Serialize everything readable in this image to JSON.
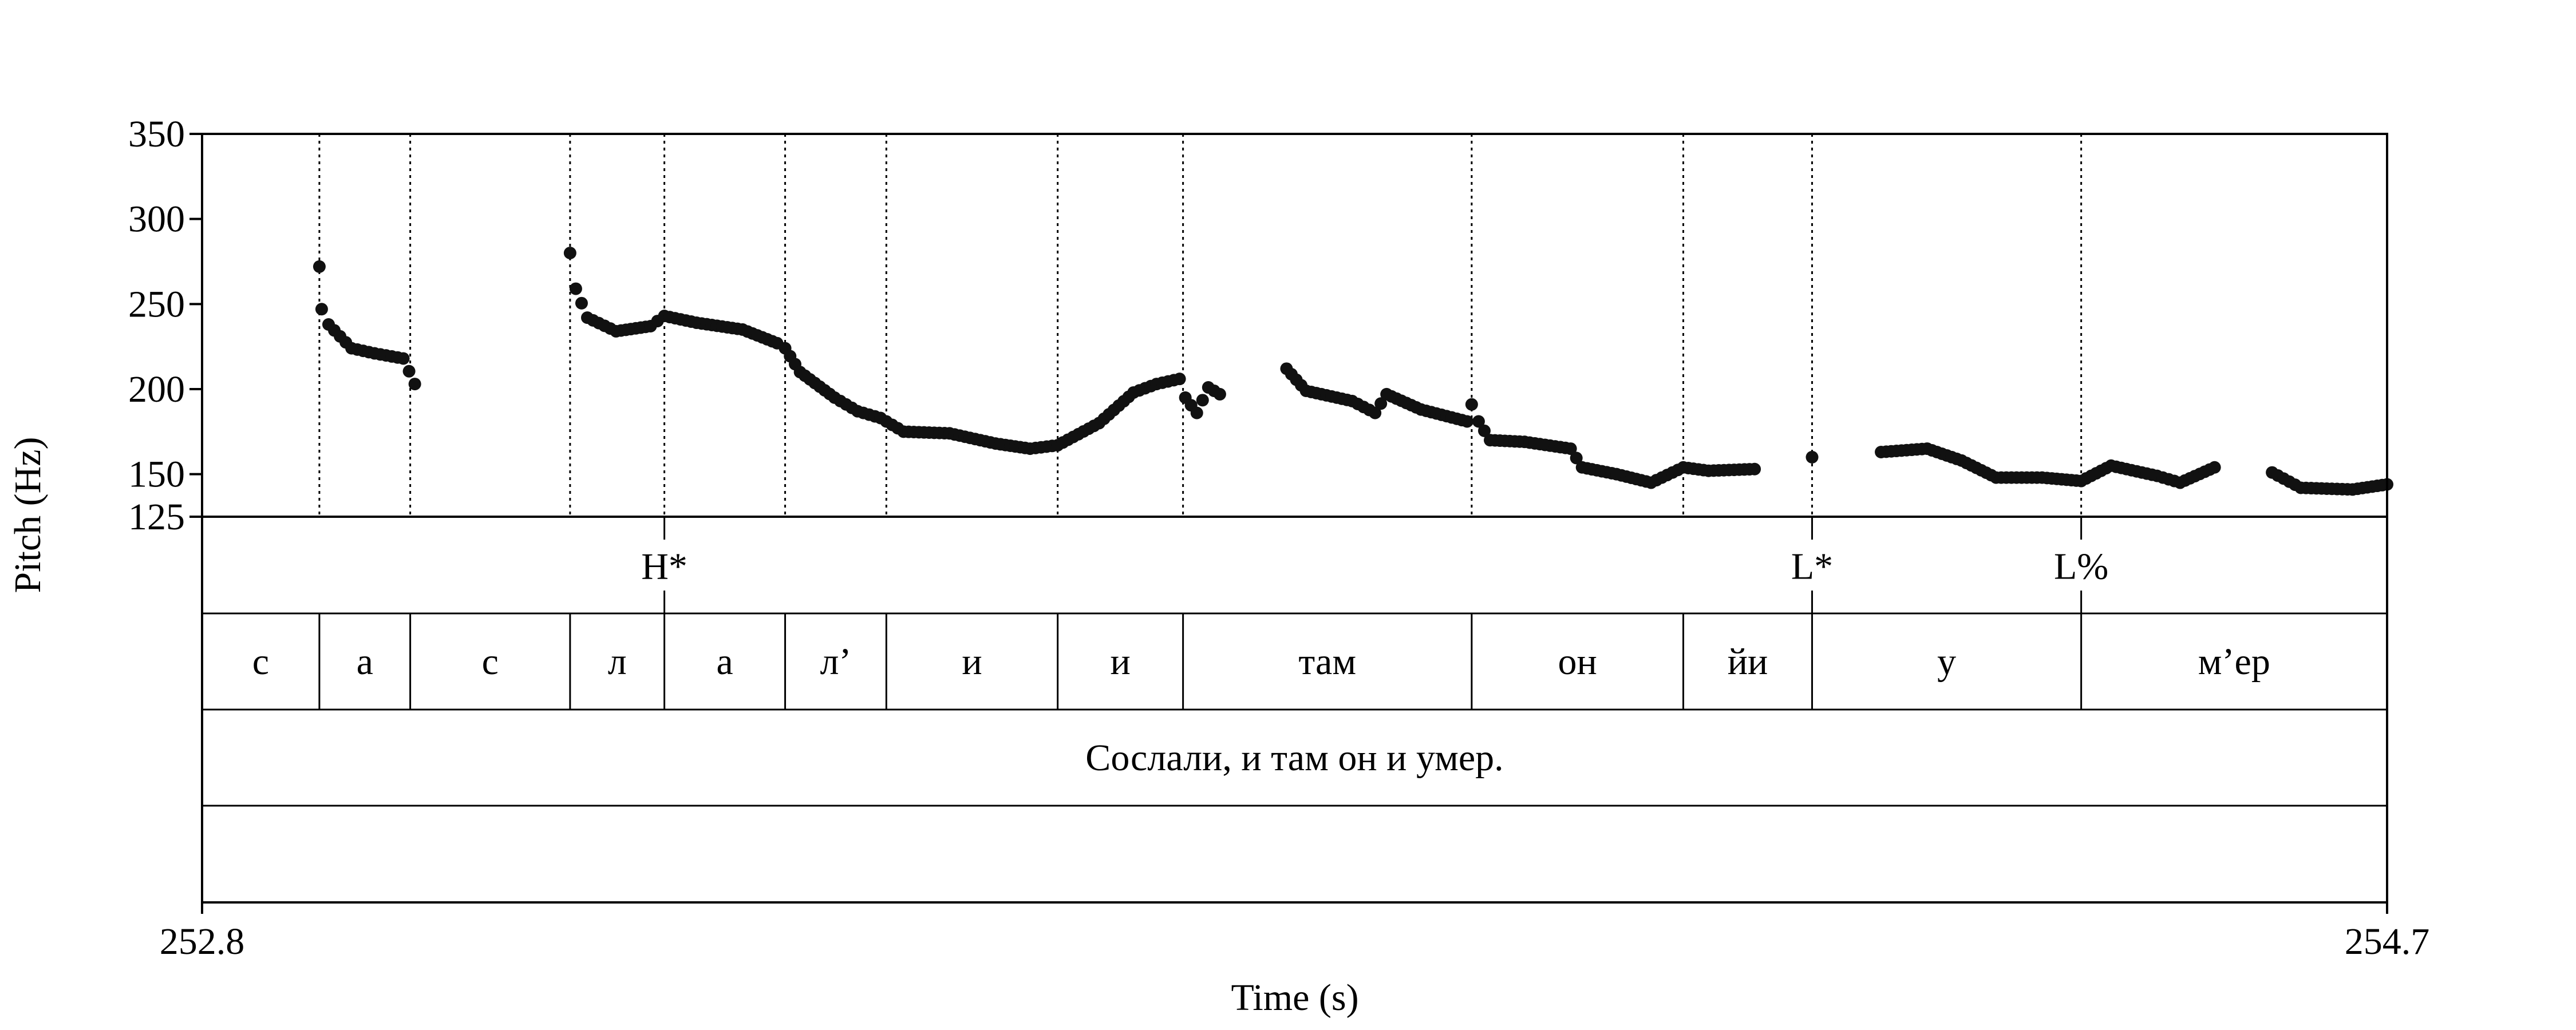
{
  "chart_data": {
    "type": "scatter",
    "xlabel": "Time (s)",
    "ylabel": "Pitch (Hz)",
    "xlim": [
      252.8,
      254.7
    ],
    "ylim": [
      125,
      350
    ],
    "x_ticks": [
      "252.8",
      "254.7"
    ],
    "y_ticks": [
      125,
      150,
      200,
      250,
      300,
      350
    ],
    "grid": false,
    "tone_tier": [
      {
        "label": "H*",
        "t": 253.202
      },
      {
        "label": "L*",
        "t": 254.2
      },
      {
        "label": "L%",
        "t": 254.434
      }
    ],
    "syllable_boundaries": [
      252.902,
      252.981,
      253.12,
      253.202,
      253.307,
      253.395,
      253.544,
      253.653,
      253.904,
      254.088,
      254.2,
      254.434
    ],
    "syllables": [
      {
        "label": "с",
        "start": 252.8,
        "end": 252.902
      },
      {
        "label": "а",
        "start": 252.902,
        "end": 252.981
      },
      {
        "label": "с",
        "start": 252.981,
        "end": 253.12
      },
      {
        "label": "л",
        "start": 253.12,
        "end": 253.202
      },
      {
        "label": "а",
        "start": 253.202,
        "end": 253.307
      },
      {
        "label": "л’",
        "start": 253.307,
        "end": 253.395
      },
      {
        "label": "и",
        "start": 253.395,
        "end": 253.544
      },
      {
        "label": "и",
        "start": 253.544,
        "end": 253.653
      },
      {
        "label": "там",
        "start": 253.653,
        "end": 253.904
      },
      {
        "label": "он",
        "start": 253.904,
        "end": 254.088
      },
      {
        "label": "йи",
        "start": 254.088,
        "end": 254.2
      },
      {
        "label": "у",
        "start": 254.2,
        "end": 254.434
      },
      {
        "label": "м’ер",
        "start": 254.434,
        "end": 254.7
      }
    ],
    "sentence": "Сослали, и там он и умер.",
    "pitch_contour": [
      {
        "t": 252.902,
        "hz": 272
      },
      {
        "t": 252.904,
        "hz": 247
      },
      {
        "t": 252.91,
        "hz": 238
      },
      {
        "t": 252.93,
        "hz": 224
      },
      {
        "t": 252.95,
        "hz": 221
      },
      {
        "t": 252.975,
        "hz": 218
      },
      {
        "t": 252.985,
        "hz": 203
      },
      {
        "t": 253.12,
        "hz": 280
      },
      {
        "t": 253.125,
        "hz": 259
      },
      {
        "t": 253.135,
        "hz": 242
      },
      {
        "t": 253.16,
        "hz": 234
      },
      {
        "t": 253.19,
        "hz": 237
      },
      {
        "t": 253.202,
        "hz": 243
      },
      {
        "t": 253.23,
        "hz": 239
      },
      {
        "t": 253.27,
        "hz": 235
      },
      {
        "t": 253.3,
        "hz": 227
      },
      {
        "t": 253.307,
        "hz": 224
      },
      {
        "t": 253.32,
        "hz": 210
      },
      {
        "t": 253.35,
        "hz": 195
      },
      {
        "t": 253.37,
        "hz": 187
      },
      {
        "t": 253.39,
        "hz": 183
      },
      {
        "t": 253.41,
        "hz": 175
      },
      {
        "t": 253.45,
        "hz": 174
      },
      {
        "t": 253.49,
        "hz": 168
      },
      {
        "t": 253.52,
        "hz": 165
      },
      {
        "t": 253.544,
        "hz": 167
      },
      {
        "t": 253.58,
        "hz": 180
      },
      {
        "t": 253.61,
        "hz": 198
      },
      {
        "t": 253.63,
        "hz": 203
      },
      {
        "t": 253.65,
        "hz": 206
      },
      {
        "t": 253.655,
        "hz": 195
      },
      {
        "t": 253.665,
        "hz": 186
      },
      {
        "t": 253.675,
        "hz": 201
      },
      {
        "t": 253.685,
        "hz": 197
      },
      {
        "t": 253.743,
        "hz": 212
      },
      {
        "t": 253.76,
        "hz": 199
      },
      {
        "t": 253.8,
        "hz": 193
      },
      {
        "t": 253.82,
        "hz": 186
      },
      {
        "t": 253.83,
        "hz": 197
      },
      {
        "t": 253.86,
        "hz": 188
      },
      {
        "t": 253.9,
        "hz": 181
      },
      {
        "t": 253.904,
        "hz": 191
      },
      {
        "t": 253.91,
        "hz": 181
      },
      {
        "t": 253.92,
        "hz": 170
      },
      {
        "t": 253.95,
        "hz": 169
      },
      {
        "t": 253.99,
        "hz": 165
      },
      {
        "t": 254.0,
        "hz": 154
      },
      {
        "t": 254.03,
        "hz": 150
      },
      {
        "t": 254.06,
        "hz": 145
      },
      {
        "t": 254.088,
        "hz": 154
      },
      {
        "t": 254.11,
        "hz": 152
      },
      {
        "t": 254.15,
        "hz": 153
      },
      {
        "t": 254.2,
        "hz": 160
      },
      {
        "t": 254.26,
        "hz": 163
      },
      {
        "t": 254.3,
        "hz": 165
      },
      {
        "t": 254.33,
        "hz": 158
      },
      {
        "t": 254.36,
        "hz": 148
      },
      {
        "t": 254.4,
        "hz": 148
      },
      {
        "t": 254.434,
        "hz": 146
      },
      {
        "t": 254.46,
        "hz": 155
      },
      {
        "t": 254.5,
        "hz": 149
      },
      {
        "t": 254.52,
        "hz": 145
      },
      {
        "t": 254.55,
        "hz": 154
      },
      {
        "t": 254.6,
        "hz": 151
      },
      {
        "t": 254.625,
        "hz": 142
      },
      {
        "t": 254.67,
        "hz": 141
      },
      {
        "t": 254.7,
        "hz": 144
      }
    ]
  }
}
